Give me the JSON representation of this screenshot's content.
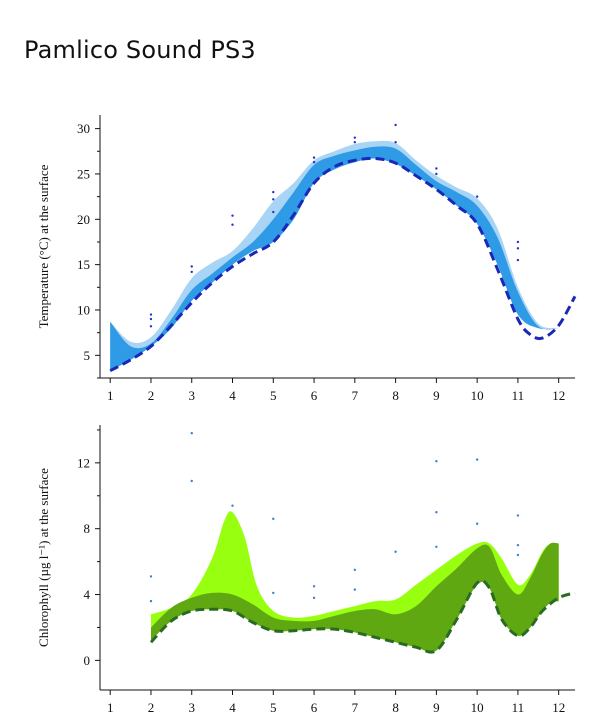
{
  "title": "Pamlico Sound PS3",
  "chart_data": [
    {
      "type": "area",
      "ylabel": "Temperature (°C) at the surface",
      "xlim": [
        0.75,
        12.4
      ],
      "ylim": [
        2.5,
        31.5
      ],
      "xticks": [
        1,
        2,
        3,
        4,
        5,
        6,
        7,
        8,
        9,
        10,
        11,
        12
      ],
      "yticks": [
        5,
        10,
        15,
        20,
        25,
        30
      ],
      "colors": {
        "outer_band": "#a8d4f5",
        "inner_band": "#2f9ae6",
        "line": "#1a28b8",
        "points": "#2233cc"
      },
      "outer_band": {
        "x": [
          1,
          1.5,
          2,
          2.5,
          3,
          3.5,
          4,
          4.5,
          5,
          5.5,
          6,
          6.5,
          7,
          7.5,
          8,
          8.5,
          9,
          9.5,
          10,
          10.5,
          11,
          11.5,
          12
        ],
        "upper": [
          8.7,
          6.5,
          7.0,
          10,
          13.5,
          15.2,
          16.5,
          19,
          22,
          24,
          26.5,
          27.5,
          28.3,
          28.6,
          28.4,
          26.5,
          24.8,
          23.5,
          22.3,
          19,
          12.5,
          8.5,
          8.0
        ],
        "lower": [
          3.3,
          4.5,
          6.0,
          8,
          11.0,
          13.0,
          15.0,
          16.5,
          17.5,
          20,
          24.0,
          25.5,
          26.3,
          26.7,
          26.1,
          24.8,
          23.3,
          21.5,
          19.5,
          15,
          9.5,
          8.0,
          8.0
        ]
      },
      "inner_band": {
        "x": [
          1,
          1.5,
          2,
          2.5,
          3,
          3.5,
          4,
          4.5,
          5,
          5.5,
          6,
          6.5,
          7,
          7.5,
          8,
          8.5,
          9,
          9.5,
          10,
          10.5,
          11,
          11.5,
          12
        ],
        "upper": [
          8.7,
          6.0,
          6.3,
          9,
          12.2,
          14.0,
          15.8,
          17.5,
          20.0,
          23.0,
          26.0,
          27.0,
          27.6,
          28.0,
          27.8,
          26.0,
          24.2,
          23.0,
          21.5,
          18,
          12.0,
          8.2,
          8.0
        ],
        "lower": [
          3.3,
          4.5,
          6.0,
          8,
          11.0,
          13.0,
          15.0,
          16.5,
          17.5,
          20,
          24.0,
          25.5,
          26.3,
          26.7,
          26.1,
          24.8,
          23.3,
          21.5,
          19.5,
          15,
          9.5,
          8.0,
          8.0
        ]
      },
      "line": {
        "x": [
          1,
          1.5,
          2,
          2.5,
          3,
          3.5,
          4,
          4.5,
          5,
          5.5,
          6,
          6.5,
          7,
          7.5,
          8,
          8.5,
          9,
          9.5,
          10,
          10.5,
          11,
          11.3,
          11.6,
          12,
          12.4
        ],
        "y": [
          3.3,
          4.5,
          6.0,
          8.3,
          10.8,
          13.0,
          14.8,
          16.2,
          17.5,
          20.5,
          24.0,
          25.8,
          26.5,
          26.7,
          26.2,
          24.8,
          23.3,
          21.5,
          19.5,
          14.5,
          9.0,
          7.3,
          6.9,
          8.3,
          11.5
        ]
      },
      "points": {
        "x": [
          2,
          2,
          2,
          3,
          3,
          4,
          4,
          5,
          5,
          5,
          6,
          6,
          7,
          7,
          8,
          8,
          9,
          9,
          10,
          11,
          11,
          11
        ],
        "y": [
          8.2,
          9.0,
          9.5,
          14.2,
          14.8,
          19.4,
          20.4,
          20.8,
          22.2,
          23.0,
          26.3,
          26.8,
          28.5,
          29.0,
          28.5,
          30.4,
          25.0,
          25.6,
          22.5,
          15.5,
          16.8,
          17.5
        ]
      }
    },
    {
      "type": "area",
      "ylabel": "Chlorophyll (µg l⁻¹) at the surface",
      "xlim": [
        0.75,
        12.4
      ],
      "ylim": [
        -1.8,
        14.3
      ],
      "xticks": [
        1,
        2,
        3,
        4,
        5,
        6,
        7,
        8,
        9,
        10,
        11,
        12
      ],
      "yticks": [
        0,
        4,
        8,
        12
      ],
      "colors": {
        "outer_band": "#99ff11",
        "inner_band": "#5fa812",
        "line": "#2a6b24",
        "points": "#3a7fd0"
      },
      "outer_band": {
        "x": [
          2,
          2.5,
          3,
          3.5,
          3.8,
          4,
          4.3,
          4.6,
          5,
          5.5,
          6,
          6.5,
          7,
          7.5,
          8,
          8.5,
          9,
          9.5,
          10,
          10.3,
          10.6,
          11,
          11.3,
          11.6,
          11.8,
          12
        ],
        "upper": [
          2.8,
          3.2,
          4.0,
          6.2,
          8.5,
          9.0,
          7.5,
          4.5,
          3.0,
          2.6,
          2.7,
          3.0,
          3.3,
          3.6,
          3.7,
          4.6,
          5.5,
          6.4,
          7.1,
          7.1,
          6.2,
          4.6,
          5.2,
          6.6,
          7.1,
          7.1
        ],
        "lower": [
          1.2,
          2.4,
          3.0,
          3.1,
          3.1,
          3.0,
          2.8,
          2.3,
          1.8,
          1.8,
          1.9,
          1.9,
          1.7,
          1.4,
          1.1,
          0.8,
          0.6,
          2.5,
          4.6,
          4.4,
          2.5,
          1.5,
          2.0,
          3.0,
          3.5,
          3.6
        ]
      },
      "inner_band": {
        "x": [
          2,
          2.5,
          3,
          3.5,
          4,
          4.5,
          5,
          5.5,
          6,
          6.5,
          7,
          7.5,
          8,
          8.5,
          9,
          9.5,
          10,
          10.3,
          10.6,
          11,
          11.3,
          11.6,
          11.8,
          12
        ],
        "upper": [
          2.0,
          3.2,
          3.8,
          4.1,
          4.0,
          3.4,
          2.6,
          2.4,
          2.4,
          2.7,
          3.0,
          3.1,
          2.8,
          3.3,
          4.5,
          5.6,
          6.8,
          6.9,
          5.2,
          4.0,
          5.0,
          6.5,
          7.1,
          7.1
        ],
        "lower": [
          1.2,
          2.4,
          3.0,
          3.1,
          3.0,
          2.3,
          1.8,
          1.8,
          1.9,
          1.9,
          1.7,
          1.4,
          1.1,
          0.8,
          0.6,
          2.5,
          4.6,
          4.4,
          2.5,
          1.5,
          2.0,
          3.0,
          3.5,
          3.6
        ]
      },
      "line": {
        "x": [
          2,
          2.5,
          3,
          3.5,
          4,
          4.5,
          5,
          5.5,
          6,
          6.5,
          7,
          7.5,
          8,
          8.5,
          9,
          9.5,
          10,
          10.3,
          10.6,
          11,
          11.3,
          11.6,
          12,
          12.4
        ],
        "y": [
          1.1,
          2.4,
          3.0,
          3.1,
          3.0,
          2.3,
          1.8,
          1.8,
          1.9,
          1.9,
          1.7,
          1.4,
          1.1,
          0.8,
          0.6,
          2.5,
          4.7,
          4.4,
          2.5,
          1.5,
          2.0,
          3.0,
          3.8,
          4.1
        ]
      },
      "points": {
        "x": [
          2,
          2,
          3,
          3,
          4,
          5,
          5,
          6,
          6,
          7,
          7,
          8,
          9,
          9,
          9,
          10,
          10,
          11,
          11,
          11
        ],
        "y": [
          3.6,
          5.1,
          10.9,
          13.8,
          9.4,
          4.1,
          8.6,
          3.8,
          4.5,
          4.3,
          5.5,
          6.6,
          6.9,
          9.0,
          12.1,
          8.3,
          12.2,
          6.4,
          7.0,
          8.8
        ]
      }
    }
  ]
}
